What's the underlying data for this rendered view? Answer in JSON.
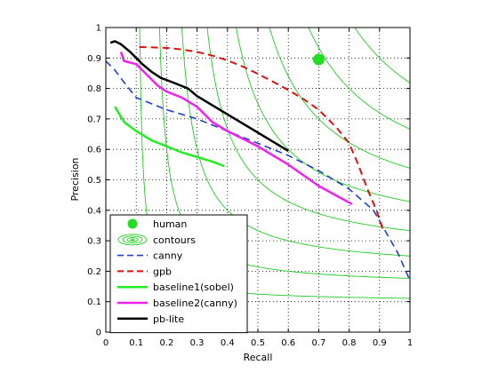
{
  "chart_data": {
    "type": "line",
    "title": "",
    "xlabel": "Recall",
    "ylabel": "Precision",
    "xlim": [
      0,
      1
    ],
    "ylim": [
      0,
      1
    ],
    "xticks": [
      "0",
      "0.1",
      "0.2",
      "0.3",
      "0.4",
      "0.5",
      "0.6",
      "0.7",
      "0.8",
      "0.9",
      "1"
    ],
    "yticks": [
      "0",
      "0.1",
      "0.2",
      "0.3",
      "0.4",
      "0.5",
      "0.6",
      "0.7",
      "0.8",
      "0.9",
      "1"
    ],
    "grid": true,
    "legend_position": "bottom-left",
    "contour_levels": [
      0.2,
      0.3,
      0.4,
      0.5,
      0.6,
      0.7,
      0.8,
      0.9
    ],
    "contour_color": "#22cc22",
    "human": {
      "name": "human",
      "recall": 0.7,
      "precision": 0.895,
      "color": "#22dd22"
    },
    "contours_label": "contours",
    "series": [
      {
        "name": "canny",
        "color": "#1f3fcf",
        "style": "dashed",
        "width": 1.6,
        "x": [
          0.0,
          0.03,
          0.06,
          0.1,
          0.15,
          0.2,
          0.3,
          0.4,
          0.5,
          0.6,
          0.7,
          0.8,
          0.88,
          0.92,
          0.96,
          1.0
        ],
        "y": [
          0.89,
          0.86,
          0.82,
          0.77,
          0.75,
          0.73,
          0.7,
          0.66,
          0.62,
          0.58,
          0.53,
          0.47,
          0.4,
          0.33,
          0.26,
          0.17
        ]
      },
      {
        "name": "gpb",
        "color": "#dd1111",
        "style": "dashed",
        "width": 2,
        "x": [
          0.11,
          0.15,
          0.2,
          0.25,
          0.3,
          0.35,
          0.4,
          0.45,
          0.5,
          0.55,
          0.6,
          0.65,
          0.7,
          0.73,
          0.76,
          0.8,
          0.83,
          0.86,
          0.89,
          0.91
        ],
        "y": [
          0.936,
          0.935,
          0.933,
          0.928,
          0.92,
          0.908,
          0.892,
          0.872,
          0.848,
          0.822,
          0.795,
          0.765,
          0.73,
          0.7,
          0.67,
          0.62,
          0.55,
          0.47,
          0.4,
          0.34
        ]
      },
      {
        "name": "baseline1(sobel)",
        "color": "#22ee22",
        "style": "solid",
        "width": 2.5,
        "x": [
          0.03,
          0.06,
          0.1,
          0.15,
          0.2,
          0.25,
          0.3,
          0.35,
          0.39
        ],
        "y": [
          0.74,
          0.69,
          0.66,
          0.63,
          0.61,
          0.59,
          0.575,
          0.56,
          0.545
        ]
      },
      {
        "name": "baseline2(canny)",
        "color": "#ee22ee",
        "style": "solid",
        "width": 2.5,
        "x": [
          0.05,
          0.06,
          0.1,
          0.13,
          0.17,
          0.2,
          0.25,
          0.3,
          0.35,
          0.4,
          0.5,
          0.6,
          0.7,
          0.81
        ],
        "y": [
          0.92,
          0.89,
          0.88,
          0.85,
          0.81,
          0.79,
          0.77,
          0.74,
          0.69,
          0.66,
          0.61,
          0.55,
          0.48,
          0.42
        ]
      },
      {
        "name": "pb-lite",
        "color": "#000000",
        "style": "solid",
        "width": 2.5,
        "x": [
          0.015,
          0.03,
          0.05,
          0.08,
          0.12,
          0.15,
          0.18,
          0.22,
          0.27,
          0.3,
          0.4,
          0.5,
          0.6
        ],
        "y": [
          0.95,
          0.955,
          0.945,
          0.92,
          0.88,
          0.855,
          0.835,
          0.82,
          0.8,
          0.775,
          0.715,
          0.655,
          0.595
        ]
      }
    ]
  }
}
